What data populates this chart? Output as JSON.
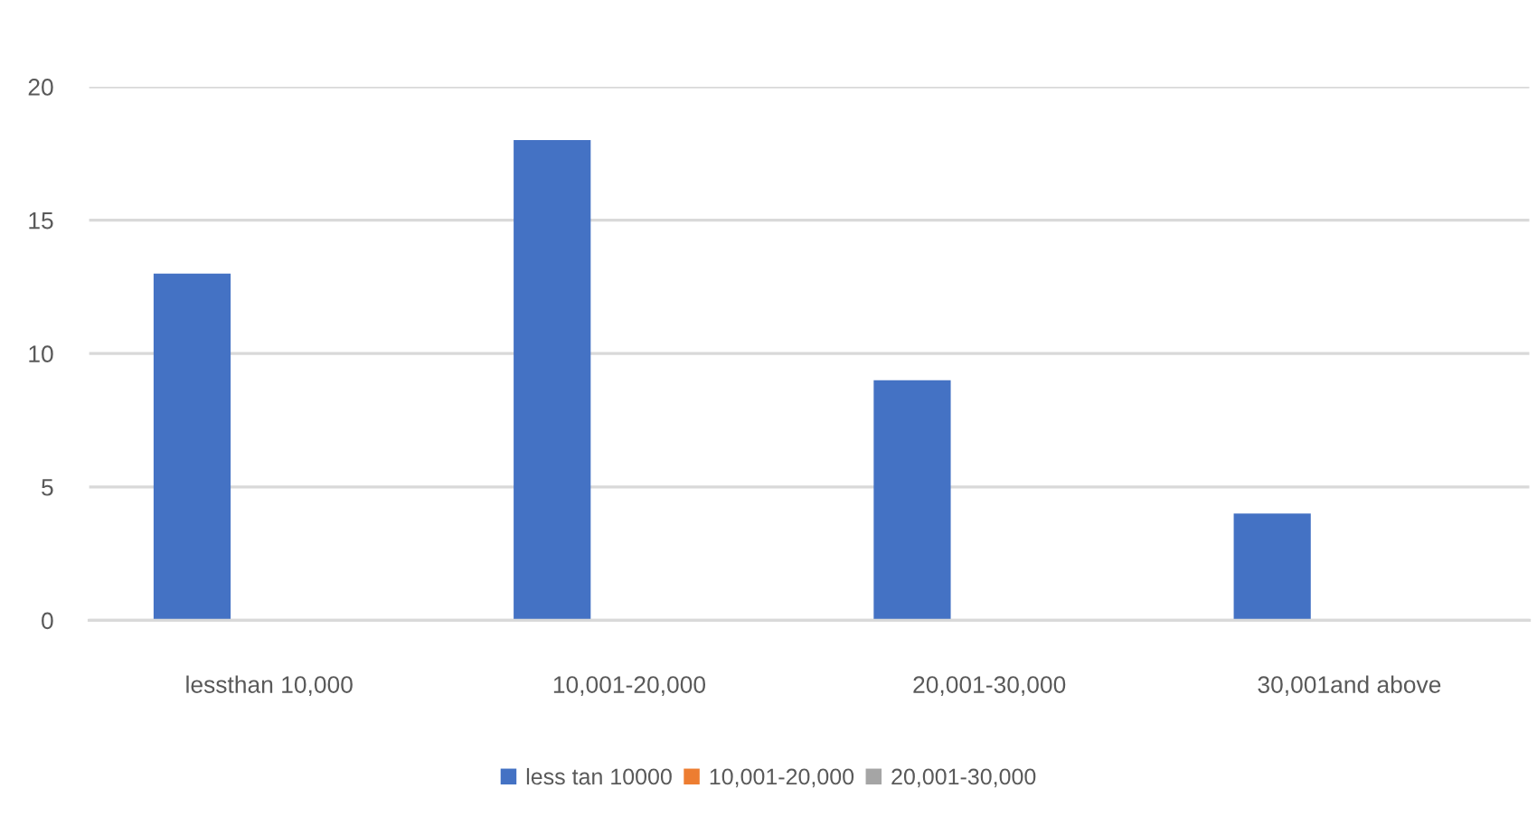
{
  "chart_data": {
    "type": "bar",
    "categories": [
      "lessthan 10,000",
      "10,001-20,000",
      "20,001-30,000",
      "30,001and above"
    ],
    "series": [
      {
        "name": "less tan 10000",
        "color": "#4472c4",
        "values": [
          13,
          18,
          9,
          4
        ]
      },
      {
        "name": "10,001-20,000",
        "color": "#ed7d31",
        "values": [
          null,
          null,
          null,
          null
        ]
      },
      {
        "name": "20,001-30,000",
        "color": "#a5a5a5",
        "values": [
          null,
          null,
          null,
          null
        ]
      }
    ],
    "ylim": [
      0,
      20
    ],
    "yticks": [
      0,
      5,
      10,
      15,
      20
    ],
    "grid": "y",
    "legend": "bottom"
  }
}
